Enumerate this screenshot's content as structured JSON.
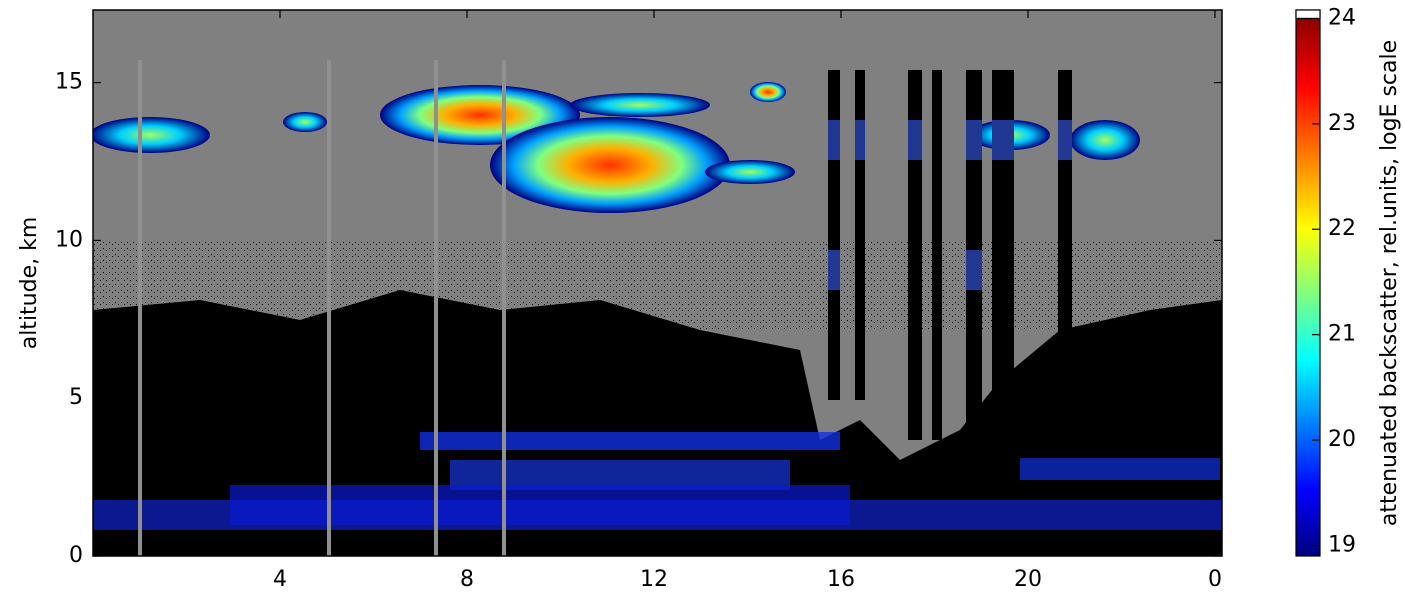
{
  "chart_data": {
    "type": "heatmap",
    "ylabel": "altitude, km",
    "xlim": [
      0,
      24.15
    ],
    "xticks": [
      4,
      8,
      12,
      16,
      20,
      {
        "value": 24,
        "label": "0"
      }
    ],
    "ylim": [
      0,
      17.3
    ],
    "yticks": [
      0,
      5,
      10,
      15
    ],
    "colorbar": {
      "label": "attenuated backscatter, rel.units, logE scale",
      "lim": [
        18.9,
        24.08
      ],
      "ticks": [
        19,
        20,
        21,
        22,
        23,
        24
      ]
    }
  }
}
